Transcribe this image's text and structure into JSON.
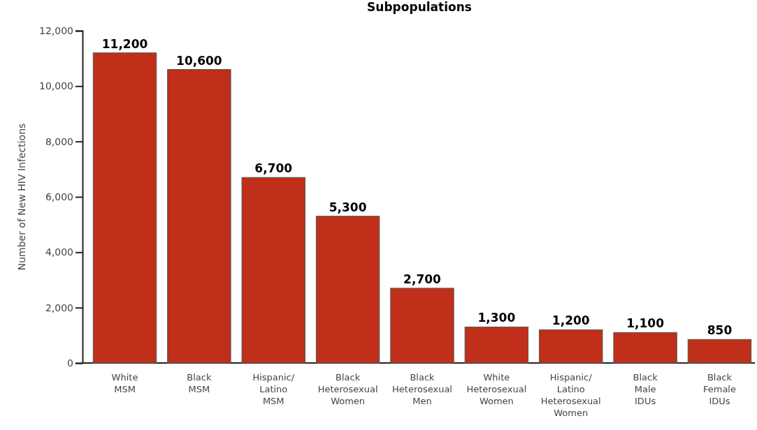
{
  "chart_data": {
    "type": "bar",
    "title": "Subpopulations",
    "ylabel": "Number of New HIV Infections",
    "categories": [
      "White\nMSM",
      "Black\nMSM",
      "Hispanic/\nLatino\nMSM",
      "Black\nHeterosexual\nWomen",
      "Black\nHeterosexual\nMen",
      "White\nHeterosexual\nWomen",
      "Hispanic/\nLatino\nHeterosexual\nWomen",
      "Black\nMale\nIDUs",
      "Black\nFemale\nIDUs"
    ],
    "values": [
      11200,
      10600,
      6700,
      5300,
      2700,
      1300,
      1200,
      1100,
      850
    ],
    "value_labels": [
      "11,200",
      "10,600",
      "6,700",
      "5,300",
      "2,700",
      "1,300",
      "1,200",
      "1,100",
      "850"
    ],
    "color": "#bf2f1a",
    "ylim": [
      0,
      12000
    ],
    "yticks": [
      {
        "value": 0,
        "label": "0"
      },
      {
        "value": 2000,
        "label": "2,000"
      },
      {
        "value": 4000,
        "label": "4,000"
      },
      {
        "value": 6000,
        "label": "6,000"
      },
      {
        "value": 8000,
        "label": "8,000"
      },
      {
        "value": 10000,
        "label": "10,000"
      },
      {
        "value": 12000,
        "label": "12,000"
      }
    ]
  }
}
